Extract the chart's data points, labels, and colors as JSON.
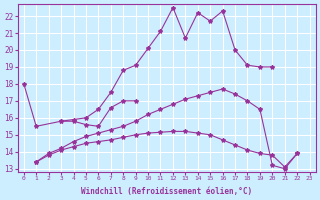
{
  "xlabel": "Windchill (Refroidissement éolien,°C)",
  "ylabel": "",
  "xlim": [
    -0.5,
    23.5
  ],
  "ylim": [
    12.8,
    22.7
  ],
  "yticks": [
    13,
    14,
    15,
    16,
    17,
    18,
    19,
    20,
    21,
    22
  ],
  "xticks": [
    0,
    1,
    2,
    3,
    4,
    5,
    6,
    7,
    8,
    9,
    10,
    11,
    12,
    13,
    14,
    15,
    16,
    17,
    18,
    19,
    20,
    21,
    22,
    23
  ],
  "bg_color": "#cceeff",
  "line_color": "#993399",
  "grid_color": "#ffffff",
  "line1": {
    "x": [
      3,
      4,
      5,
      6,
      7,
      8,
      9,
      10,
      11,
      12,
      13,
      14,
      15,
      16,
      17,
      18,
      19,
      20
    ],
    "y": [
      15.8,
      15.9,
      16.0,
      16.5,
      17.5,
      18.8,
      19.1,
      20.1,
      21.1,
      22.5,
      20.7,
      22.2,
      21.7,
      22.3,
      20.0,
      19.1,
      19.0,
      19.0
    ]
  },
  "line2": {
    "x": [
      0,
      1,
      3,
      4,
      5,
      6,
      7,
      8,
      9
    ],
    "y": [
      18.0,
      15.5,
      15.8,
      15.8,
      15.6,
      15.5,
      16.6,
      17.0,
      17.0
    ]
  },
  "line3": {
    "x": [
      1,
      2,
      3,
      4,
      5,
      6,
      7,
      8,
      9,
      10,
      11,
      12,
      13,
      14,
      15,
      16,
      17,
      18,
      19,
      20,
      21,
      22
    ],
    "y": [
      13.4,
      13.8,
      14.1,
      14.3,
      14.5,
      14.6,
      14.7,
      14.85,
      15.0,
      15.1,
      15.15,
      15.2,
      15.2,
      15.1,
      15.0,
      14.7,
      14.4,
      14.1,
      13.9,
      13.8,
      13.1,
      13.9
    ]
  },
  "line4": {
    "x": [
      1,
      2,
      3,
      4,
      5,
      6,
      7,
      8,
      9,
      10,
      11,
      12,
      13,
      14,
      15,
      16,
      17,
      18,
      19,
      20,
      21,
      22
    ],
    "y": [
      13.4,
      13.9,
      14.2,
      14.6,
      14.9,
      15.1,
      15.3,
      15.5,
      15.8,
      16.2,
      16.5,
      16.8,
      17.1,
      17.3,
      17.5,
      17.7,
      17.4,
      17.0,
      16.5,
      13.2,
      13.0,
      13.9
    ]
  }
}
